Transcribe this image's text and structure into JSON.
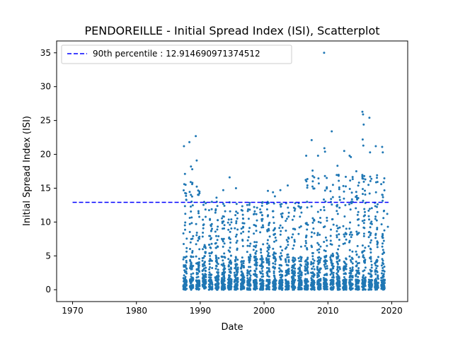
{
  "chart_data": {
    "type": "scatter",
    "title": "PENDOREILLE - Initial Spread Index (ISI), Scatterplot",
    "xlabel": "Date",
    "ylabel": "Initial Spread Index (ISI)",
    "xlim": [
      1967.5,
      2022.5
    ],
    "ylim": [
      -1.75,
      36.75
    ],
    "x_ticks": [
      1970,
      1980,
      1990,
      2000,
      2010,
      2020
    ],
    "y_ticks": [
      0,
      5,
      10,
      15,
      20,
      25,
      30,
      35
    ],
    "grid": false,
    "legend_position": "top-left",
    "point_color": "#1f77b4",
    "reference_line": {
      "label": "90th percentile : 12.914690971374512",
      "y": 12.914690971374512,
      "x_range": [
        1970,
        2019.5
      ],
      "color": "#0000ff",
      "style": "dashed"
    },
    "data_coverage": {
      "years": [
        1987,
        2019
      ],
      "season_fraction": [
        0.35,
        0.9
      ]
    },
    "series": [
      {
        "type": "scatter",
        "points": [
          [
            1987.45,
            21.2
          ],
          [
            1987.6,
            17.1
          ],
          [
            1988.3,
            21.8
          ],
          [
            1988.55,
            18.2
          ],
          [
            1988.75,
            17.8
          ],
          [
            1989.3,
            22.7
          ],
          [
            1989.45,
            19.1
          ],
          [
            1988.5,
            15.9
          ],
          [
            1994.6,
            16.6
          ],
          [
            1995.6,
            15.0
          ],
          [
            1993.6,
            14.7
          ],
          [
            1992.55,
            13.6
          ],
          [
            2000.6,
            14.6
          ],
          [
            2001.4,
            14.4
          ],
          [
            2002.55,
            14.7
          ],
          [
            2003.7,
            15.4
          ],
          [
            2001.7,
            13.8
          ],
          [
            2006.6,
            19.8
          ],
          [
            2007.45,
            22.1
          ],
          [
            2007.6,
            17.6
          ],
          [
            2009.4,
            35.0
          ],
          [
            2009.45,
            20.9
          ],
          [
            2009.55,
            20.4
          ],
          [
            2008.45,
            19.8
          ],
          [
            2010.6,
            23.4
          ],
          [
            2011.5,
            18.3
          ],
          [
            2012.55,
            20.5
          ],
          [
            2013.4,
            19.8
          ],
          [
            2013.6,
            19.6
          ],
          [
            2014.45,
            17.5
          ],
          [
            2015.4,
            26.3
          ],
          [
            2015.5,
            25.9
          ],
          [
            2015.6,
            24.4
          ],
          [
            2015.45,
            22.2
          ],
          [
            2015.55,
            21.3
          ],
          [
            2016.5,
            25.4
          ],
          [
            2016.6,
            20.3
          ],
          [
            2017.5,
            21.2
          ],
          [
            2018.5,
            21.1
          ],
          [
            2018.6,
            20.3
          ],
          [
            2019.3,
            11.2
          ],
          [
            2019.4,
            9.3
          ]
        ]
      }
    ]
  }
}
